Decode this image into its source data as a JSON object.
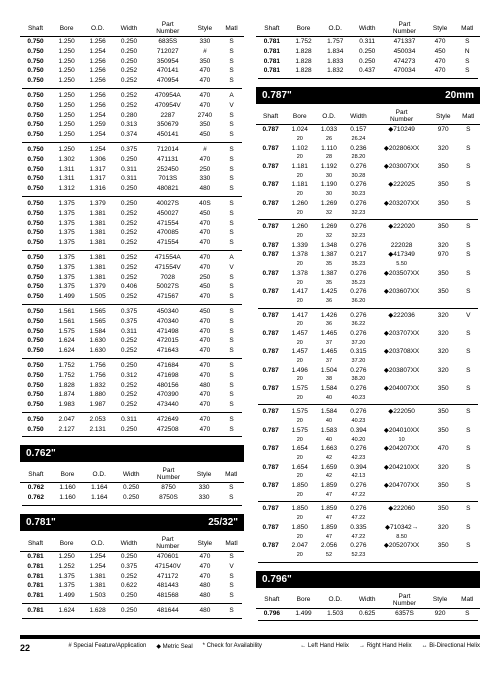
{
  "headers": {
    "shaft": "Shaft",
    "bore": "Bore",
    "od": "O.D.",
    "width": "Width",
    "part_number": "Part\nNumber",
    "style": "Style",
    "matl": "Matl"
  },
  "footer": {
    "page": "22",
    "notes_left": [
      "# Special Feature/Application",
      "◆ Metric Seal",
      "* Check for Availability"
    ],
    "notes_right": [
      "← Left Hand Helix",
      "→ Right Hand Helix",
      "↔ Bi-Directional Helix"
    ]
  },
  "banners": {
    "b762": {
      "left": "0.762\"",
      "right": ""
    },
    "b781": {
      "left": "0.781\"",
      "right": "25/32\""
    },
    "b787": {
      "left": "0.787\"",
      "right": "20mm"
    },
    "b796": {
      "left": "0.796\"",
      "right": ""
    }
  },
  "left_col": [
    {
      "group": [
        [
          "0.750",
          "1.250",
          "1.256",
          "0.250",
          "6835S",
          "330",
          "S"
        ],
        [
          "0.750",
          "1.250",
          "1.254",
          "0.250",
          "712027",
          "#",
          "S"
        ],
        [
          "0.750",
          "1.250",
          "1.256",
          "0.250",
          "350954",
          "350",
          "S"
        ],
        [
          "0.750",
          "1.250",
          "1.256",
          "0.252",
          "470141",
          "470",
          "S"
        ],
        [
          "0.750",
          "1.250",
          "1.256",
          "0.252",
          "470954",
          "470",
          "S"
        ]
      ]
    },
    {
      "group": [
        [
          "0.750",
          "1.250",
          "1.256",
          "0.252",
          "470954A",
          "470",
          "A"
        ],
        [
          "0.750",
          "1.250",
          "1.256",
          "0.252",
          "470954V",
          "470",
          "V"
        ],
        [
          "0.750",
          "1.250",
          "1.254",
          "0.280",
          "2287",
          "2740",
          "S"
        ],
        [
          "0.750",
          "1.250",
          "1.259",
          "0.313",
          "350679",
          "350",
          "S"
        ],
        [
          "0.750",
          "1.250",
          "1.254",
          "0.374",
          "450141",
          "450",
          "S"
        ]
      ]
    },
    {
      "group": [
        [
          "0.750",
          "1.250",
          "1.254",
          "0.375",
          "712014",
          "#",
          "S"
        ],
        [
          "0.750",
          "1.302",
          "1.306",
          "0.250",
          "471131",
          "470",
          "S"
        ],
        [
          "0.750",
          "1.311",
          "1.317",
          "0.311",
          "252450",
          "250",
          "S"
        ],
        [
          "0.750",
          "1.311",
          "1.317",
          "0.311",
          "7013S",
          "330",
          "S"
        ],
        [
          "0.750",
          "1.312",
          "1.316",
          "0.250",
          "480821",
          "480",
          "S"
        ]
      ]
    },
    {
      "group": [
        [
          "0.750",
          "1.375",
          "1.379",
          "0.250",
          "40027S",
          "40S",
          "S"
        ],
        [
          "0.750",
          "1.375",
          "1.381",
          "0.252",
          "450027",
          "450",
          "S"
        ],
        [
          "0.750",
          "1.375",
          "1.381",
          "0.252",
          "471554",
          "470",
          "S"
        ],
        [
          "0.750",
          "1.375",
          "1.381",
          "0.252",
          "470085",
          "470",
          "S"
        ],
        [
          "0.750",
          "1.375",
          "1.381",
          "0.252",
          "471554",
          "470",
          "S"
        ]
      ]
    },
    {
      "group": [
        [
          "0.750",
          "1.375",
          "1.381",
          "0.252",
          "471554A",
          "470",
          "A"
        ],
        [
          "0.750",
          "1.375",
          "1.381",
          "0.252",
          "471554V",
          "470",
          "V"
        ],
        [
          "0.750",
          "1.375",
          "1.381",
          "0.252",
          "7028",
          "250",
          "S"
        ],
        [
          "0.750",
          "1.375",
          "1.379",
          "0.406",
          "50027S",
          "450",
          "S"
        ],
        [
          "0.750",
          "1.499",
          "1.505",
          "0.252",
          "471567",
          "470",
          "S"
        ]
      ]
    },
    {
      "group": [
        [
          "0.750",
          "1.561",
          "1.565",
          "0.375",
          "450340",
          "450",
          "S"
        ],
        [
          "0.750",
          "1.561",
          "1.565",
          "0.375",
          "470340",
          "470",
          "S"
        ],
        [
          "0.750",
          "1.575",
          "1.584",
          "0.311",
          "471498",
          "470",
          "S"
        ],
        [
          "0.750",
          "1.624",
          "1.630",
          "0.252",
          "472015",
          "470",
          "S"
        ],
        [
          "0.750",
          "1.624",
          "1.630",
          "0.252",
          "471643",
          "470",
          "S"
        ]
      ]
    },
    {
      "group": [
        [
          "0.750",
          "1.752",
          "1.756",
          "0.250",
          "471684",
          "470",
          "S"
        ],
        [
          "0.750",
          "1.752",
          "1.756",
          "0.312",
          "471698",
          "470",
          "S"
        ],
        [
          "0.750",
          "1.828",
          "1.832",
          "0.252",
          "480156",
          "480",
          "S"
        ],
        [
          "0.750",
          "1.874",
          "1.880",
          "0.252",
          "470390",
          "470",
          "S"
        ],
        [
          "0.750",
          "1.983",
          "1.987",
          "0.252",
          "473440",
          "470",
          "S"
        ]
      ]
    },
    {
      "group": [
        [
          "0.750",
          "2.047",
          "2.053",
          "0.311",
          "472649",
          "470",
          "S"
        ],
        [
          "0.750",
          "2.127",
          "2.131",
          "0.250",
          "472508",
          "470",
          "S"
        ]
      ]
    },
    {
      "banner": "b762"
    },
    {
      "group": [
        [
          "0.762",
          "1.160",
          "1.164",
          "0.250",
          "8750",
          "330",
          "S"
        ],
        [
          "0.762",
          "1.160",
          "1.164",
          "0.250",
          "8750S",
          "330",
          "S"
        ]
      ]
    },
    {
      "banner": "b781"
    },
    {
      "group": [
        [
          "0.781",
          "1.250",
          "1.254",
          "0.250",
          "470601",
          "470",
          "S"
        ],
        [
          "0.781",
          "1.252",
          "1.254",
          "0.375",
          "471540V",
          "470",
          "V"
        ],
        [
          "0.781",
          "1.375",
          "1.381",
          "0.252",
          "471172",
          "470",
          "S"
        ],
        [
          "0.781",
          "1.375",
          "1.381",
          "0.622",
          "481443",
          "480",
          "S"
        ],
        [
          "0.781",
          "1.499",
          "1.503",
          "0.250",
          "481568",
          "480",
          "S"
        ]
      ]
    },
    {
      "group": [
        [
          "0.781",
          "1.624",
          "1.628",
          "0.250",
          "481644",
          "480",
          "S"
        ]
      ]
    }
  ],
  "right_col": [
    {
      "group": [
        [
          "0.781",
          "1.752",
          "1.757",
          "0.311",
          "471337",
          "470",
          "S"
        ],
        [
          "0.781",
          "1.828",
          "1.834",
          "0.250",
          "450034",
          "450",
          "N"
        ],
        [
          "0.781",
          "1.828",
          "1.833",
          "0.250",
          "474273",
          "470",
          "S"
        ],
        [
          "0.781",
          "1.828",
          "1.832",
          "0.437",
          "470034",
          "470",
          "S"
        ]
      ]
    },
    {
      "banner": "b787"
    },
    {
      "group": [
        [
          "0.787",
          "1.024",
          "1.033",
          "0.157",
          "◆710249",
          "970",
          "S"
        ],
        [
          "",
          "20",
          "26",
          "26.24",
          "",
          "",
          ""
        ],
        [
          "0.787",
          "1.102",
          "1.110",
          "0.236",
          "◆202806XX",
          "320",
          "S"
        ],
        [
          "",
          "20",
          "28",
          "28.20",
          "",
          "",
          ""
        ],
        [
          "0.787",
          "1.181",
          "1.192",
          "0.276",
          "◆203007XX",
          "350",
          "S"
        ],
        [
          "",
          "20",
          "30",
          "30.28",
          "",
          "",
          ""
        ],
        [
          "0.787",
          "1.181",
          "1.190",
          "0.276",
          "◆222025",
          "350",
          "S"
        ],
        [
          "",
          "20",
          "30",
          "30.23",
          "",
          "",
          ""
        ],
        [
          "0.787",
          "1.260",
          "1.269",
          "0.276",
          "◆203207XX",
          "350",
          "S"
        ],
        [
          "",
          "20",
          "32",
          "32.23",
          "",
          "",
          ""
        ]
      ]
    },
    {
      "group": [
        [
          "0.787",
          "1.260",
          "1.269",
          "0.276",
          "◆222020",
          "350",
          "S"
        ],
        [
          "",
          "20",
          "32",
          "32.23",
          "",
          "",
          ""
        ],
        [
          "0.787",
          "1.339",
          "1.348",
          "0.276",
          "222028",
          "320",
          "S"
        ],
        [
          "0.787",
          "1.378",
          "1.387",
          "0.217",
          "◆417349",
          "970",
          "S"
        ],
        [
          "",
          "20",
          "35",
          "35.23",
          "5.50",
          "",
          ""
        ],
        [
          "0.787",
          "1.378",
          "1.387",
          "0.276",
          "◆203507XX",
          "350",
          "S"
        ],
        [
          "",
          "20",
          "35",
          "35.23",
          "",
          "",
          ""
        ],
        [
          "0.787",
          "1.417",
          "1.425",
          "0.276",
          "◆203607XX",
          "350",
          "S"
        ],
        [
          "",
          "20",
          "36",
          "36.20",
          "",
          "",
          ""
        ]
      ]
    },
    {
      "group": [
        [
          "0.787",
          "1.417",
          "1.426",
          "0.276",
          "◆222036",
          "320",
          "V"
        ],
        [
          "",
          "20",
          "36",
          "36.22",
          "",
          "",
          ""
        ],
        [
          "0.787",
          "1.457",
          "1.465",
          "0.276",
          "◆203707XX",
          "320",
          "S"
        ],
        [
          "",
          "20",
          "37",
          "37.20",
          "",
          "",
          ""
        ],
        [
          "0.787",
          "1.457",
          "1.465",
          "0.315",
          "◆203708XX",
          "320",
          "S"
        ],
        [
          "",
          "20",
          "37",
          "37.20",
          "",
          "",
          ""
        ],
        [
          "0.787",
          "1.496",
          "1.504",
          "0.276",
          "◆203807XX",
          "320",
          "S"
        ],
        [
          "",
          "20",
          "38",
          "38.20",
          "",
          "",
          ""
        ],
        [
          "0.787",
          "1.575",
          "1.584",
          "0.276",
          "◆204007XX",
          "350",
          "S"
        ],
        [
          "",
          "20",
          "40",
          "40.23",
          "",
          "",
          ""
        ]
      ]
    },
    {
      "group": [
        [
          "0.787",
          "1.575",
          "1.584",
          "0.276",
          "◆222050",
          "350",
          "S"
        ],
        [
          "",
          "20",
          "40",
          "40.23",
          "",
          "",
          ""
        ],
        [
          "0.787",
          "1.575",
          "1.583",
          "0.394",
          "◆204010XX",
          "350",
          "S"
        ],
        [
          "",
          "20",
          "40",
          "40.20",
          "10",
          "",
          ""
        ],
        [
          "0.787",
          "1.654",
          "1.663",
          "0.276",
          "◆204207XX",
          "470",
          "S"
        ],
        [
          "",
          "20",
          "42",
          "42.23",
          "",
          "",
          ""
        ],
        [
          "0.787",
          "1.654",
          "1.659",
          "0.394",
          "◆204210XX",
          "320",
          "S"
        ],
        [
          "",
          "20",
          "42",
          "42.13",
          "",
          "",
          ""
        ],
        [
          "0.787",
          "1.850",
          "1.859",
          "0.276",
          "◆204707XX",
          "350",
          "S"
        ],
        [
          "",
          "20",
          "47",
          "47.22",
          "",
          "",
          ""
        ]
      ]
    },
    {
      "group": [
        [
          "0.787",
          "1.850",
          "1.859",
          "0.276",
          "◆222060",
          "350",
          "S"
        ],
        [
          "",
          "20",
          "47",
          "47.22",
          "",
          "",
          ""
        ],
        [
          "0.787",
          "1.850",
          "1.859",
          "0.335",
          "◆710342→",
          "320",
          "S"
        ],
        [
          "",
          "20",
          "47",
          "47.22",
          "8.50",
          "",
          ""
        ],
        [
          "0.787",
          "2.047",
          "2.056",
          "0.276",
          "◆205207XX",
          "350",
          "S"
        ],
        [
          "",
          "20",
          "52",
          "52.23",
          "",
          "",
          ""
        ]
      ]
    },
    {
      "banner": "b796"
    },
    {
      "group": [
        [
          "0.796",
          "1.499",
          "1.503",
          "0.625",
          "6357S",
          "920",
          "S"
        ]
      ]
    }
  ]
}
